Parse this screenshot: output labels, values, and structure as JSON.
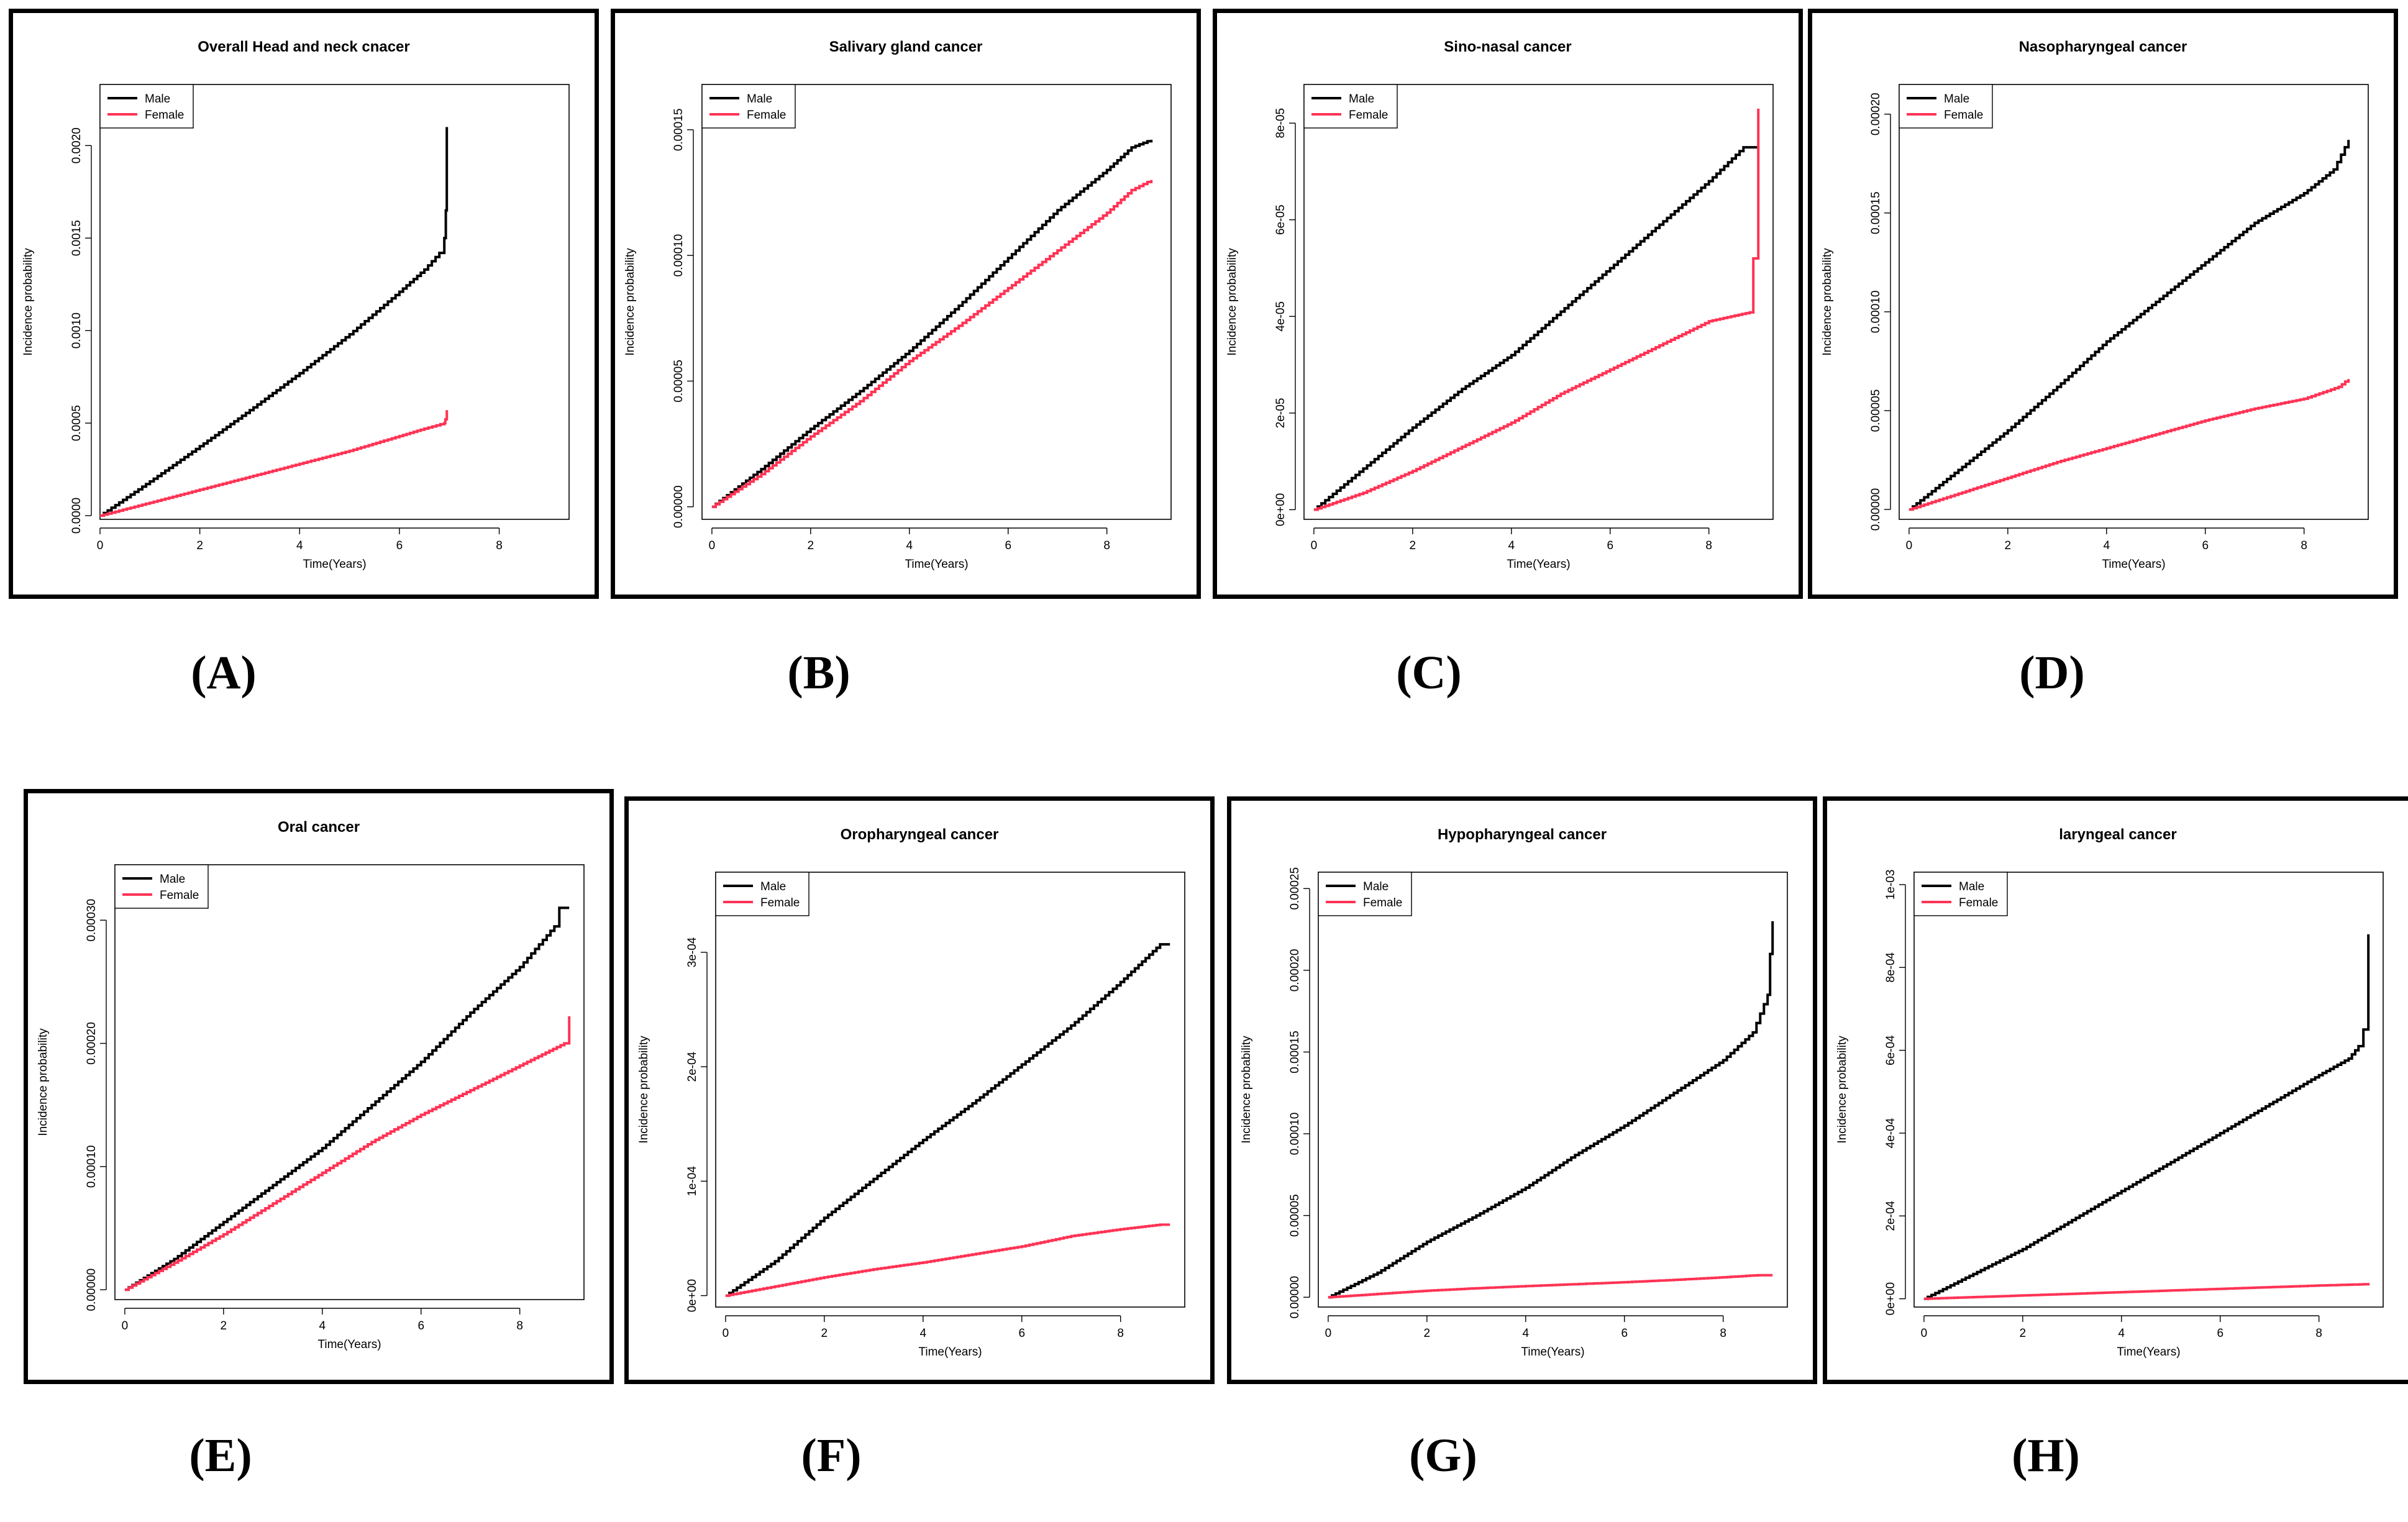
{
  "colors": {
    "male": "#000000",
    "female": "#ff3355"
  },
  "chart_data": [
    {
      "id": "A",
      "type": "line",
      "title": "Overall Head and neck cnacer",
      "xlabel": "Time(Years)",
      "ylabel": "Incidence probability",
      "xlim": [
        0,
        9.4
      ],
      "ylim": [
        -2e-05,
        0.00233
      ],
      "xticks": [
        0,
        2,
        4,
        6,
        8
      ],
      "xtick_labels": [
        "0",
        "2",
        "4",
        "6",
        "8"
      ],
      "yticks": [
        0,
        0.0005,
        0.001,
        0.0015,
        0.002
      ],
      "ytick_labels": [
        "0.0000",
        "0.0005",
        "0.0010",
        "0.0015",
        "0.0020"
      ],
      "legend": [
        "Male",
        "Female"
      ],
      "series": [
        {
          "name": "Male",
          "x": [
            0,
            1,
            2,
            3,
            4,
            5,
            6,
            6.5,
            6.8,
            6.9,
            6.93,
            6.95,
            6.95
          ],
          "y": [
            0,
            0.000185,
            0.000375,
            0.00057,
            0.00077,
            0.00098,
            0.00121,
            0.00133,
            0.00142,
            0.0015,
            0.00165,
            0.00172,
            0.0021
          ]
        },
        {
          "name": "Female",
          "x": [
            0,
            1,
            2,
            3,
            4,
            5,
            6,
            6.5,
            6.9,
            6.92,
            6.95
          ],
          "y": [
            0,
            7e-05,
            0.00014,
            0.00021,
            0.00028,
            0.00035,
            0.00043,
            0.00047,
            0.0005,
            0.00052,
            0.00057
          ]
        }
      ]
    },
    {
      "id": "B",
      "type": "line",
      "title": "Salivary gland cancer",
      "xlabel": "Time(Years)",
      "ylabel": "Incidence probability",
      "xlim": [
        -0.2,
        9.3
      ],
      "ylim": [
        -5e-06,
        0.000168
      ],
      "xticks": [
        0,
        2,
        4,
        6,
        8
      ],
      "xtick_labels": [
        "0",
        "2",
        "4",
        "6",
        "8"
      ],
      "yticks": [
        0,
        5e-05,
        0.0001,
        0.00015
      ],
      "ytick_labels": [
        "0.00000",
        "0.00005",
        "0.00010",
        "0.00015"
      ],
      "legend": [
        "Male",
        "Female"
      ],
      "series": [
        {
          "name": "Male",
          "x": [
            0,
            1,
            2,
            3,
            4,
            5,
            6,
            7,
            8,
            8.5,
            8.9
          ],
          "y": [
            0,
            1.5e-05,
            3.1e-05,
            4.6e-05,
            6.2e-05,
            8e-05,
            9.9e-05,
            0.000118,
            0.000134,
            0.000143,
            0.000146
          ]
        },
        {
          "name": "Female",
          "x": [
            0,
            1,
            2,
            3,
            4,
            5,
            6,
            7,
            8,
            8.5,
            8.9
          ],
          "y": [
            0,
            1.3e-05,
            2.8e-05,
            4.2e-05,
            5.8e-05,
            7.2e-05,
            8.7e-05,
            0.000102,
            0.000117,
            0.000126,
            0.00013
          ]
        }
      ]
    },
    {
      "id": "C",
      "type": "line",
      "title": "Sino-nasal cancer",
      "xlabel": "Time(Years)",
      "ylabel": "Incidence probability",
      "xlim": [
        -0.2,
        9.3
      ],
      "ylim": [
        -2e-06,
        8.8e-05
      ],
      "xticks": [
        0,
        2,
        4,
        6,
        8
      ],
      "xtick_labels": [
        "0",
        "2",
        "4",
        "6",
        "8"
      ],
      "yticks": [
        0,
        2e-05,
        4e-05,
        6e-05,
        8e-05
      ],
      "ytick_labels": [
        "0e+00",
        "2e-05",
        "4e-05",
        "6e-05",
        "8e-05"
      ],
      "legend": [
        "Male",
        "Female"
      ],
      "series": [
        {
          "name": "Male",
          "x": [
            0,
            1,
            2,
            3,
            4,
            5,
            6,
            7,
            8,
            8.7,
            9
          ],
          "y": [
            0,
            8.5e-06,
            1.7e-05,
            2.5e-05,
            3.2e-05,
            4.1e-05,
            5e-05,
            5.9e-05,
            6.8e-05,
            7.5e-05,
            7.5e-05
          ]
        },
        {
          "name": "Female",
          "x": [
            0,
            1,
            2,
            3,
            4,
            5,
            6,
            7,
            8,
            8.9,
            8.9,
            9.0,
            9.0
          ],
          "y": [
            0,
            3.5e-06,
            8e-06,
            1.3e-05,
            1.8e-05,
            2.4e-05,
            2.9e-05,
            3.4e-05,
            3.9e-05,
            4.1e-05,
            5.2e-05,
            7e-05,
            8.3e-05
          ]
        }
      ]
    },
    {
      "id": "D",
      "type": "line",
      "title": "Nasopharyngeal cancer",
      "xlabel": "Time(Years)",
      "ylabel": "Incidence probability",
      "xlim": [
        -0.2,
        9.3
      ],
      "ylim": [
        -5e-06,
        0.000215
      ],
      "xticks": [
        0,
        2,
        4,
        6,
        8
      ],
      "xtick_labels": [
        "0",
        "2",
        "4",
        "6",
        "8"
      ],
      "yticks": [
        0,
        5e-05,
        0.0001,
        0.00015,
        0.0002
      ],
      "ytick_labels": [
        "0.00000",
        "0.00005",
        "0.00010",
        "0.00015",
        "0.00020"
      ],
      "legend": [
        "Male",
        "Female"
      ],
      "series": [
        {
          "name": "Male",
          "x": [
            0,
            1,
            2,
            3,
            4,
            5,
            6,
            7,
            8,
            8.6,
            8.9
          ],
          "y": [
            0,
            2e-05,
            4e-05,
            6.2e-05,
            8.5e-05,
            0.000105,
            0.000125,
            0.000145,
            0.00016,
            0.000172,
            0.000187
          ]
        },
        {
          "name": "Female",
          "x": [
            0,
            1,
            2,
            3,
            4,
            5,
            6,
            7,
            8,
            8.7,
            8.9
          ],
          "y": [
            0,
            8e-06,
            1.6e-05,
            2.4e-05,
            3.1e-05,
            3.8e-05,
            4.5e-05,
            5.1e-05,
            5.6e-05,
            6.2e-05,
            6.6e-05
          ]
        }
      ]
    },
    {
      "id": "E",
      "type": "line",
      "title": "Oral cancer",
      "xlabel": "Time(Years)",
      "ylabel": "Incidence probability",
      "xlim": [
        -0.2,
        9.3
      ],
      "ylim": [
        -8e-06,
        0.000345
      ],
      "xticks": [
        0,
        2,
        4,
        6,
        8
      ],
      "xtick_labels": [
        "0",
        "2",
        "4",
        "6",
        "8"
      ],
      "yticks": [
        0,
        0.0001,
        0.0002,
        0.0003
      ],
      "ytick_labels": [
        "0.00000",
        "0.00010",
        "0.00020",
        "0.00030"
      ],
      "legend": [
        "Male",
        "Female"
      ],
      "series": [
        {
          "name": "Male",
          "x": [
            0,
            1,
            2,
            3,
            4,
            5,
            6,
            7,
            8,
            8.7,
            8.8,
            9
          ],
          "y": [
            0,
            2.5e-05,
            5.5e-05,
            8.5e-05,
            0.000115,
            0.00015,
            0.000185,
            0.000225,
            0.000262,
            0.000295,
            0.00031,
            0.00031
          ]
        },
        {
          "name": "Female",
          "x": [
            0,
            1,
            2,
            3,
            4,
            5,
            6,
            7,
            8,
            8.9,
            9,
            9
          ],
          "y": [
            0,
            2.2e-05,
            4.5e-05,
            7e-05,
            9.5e-05,
            0.00012,
            0.000142,
            0.000162,
            0.000182,
            0.0002,
            0.000205,
            0.000222
          ]
        }
      ]
    },
    {
      "id": "F",
      "type": "line",
      "title": "Oropharyngeal cancer",
      "xlabel": "Time(Years)",
      "ylabel": "Incidence probability",
      "xlim": [
        -0.2,
        9.3
      ],
      "ylim": [
        -1e-05,
        0.00037
      ],
      "xticks": [
        0,
        2,
        4,
        6,
        8
      ],
      "xtick_labels": [
        "0",
        "2",
        "4",
        "6",
        "8"
      ],
      "yticks": [
        0,
        0.0001,
        0.0002,
        0.0003
      ],
      "ytick_labels": [
        "0e+00",
        "1e-04",
        "2e-04",
        "3e-04"
      ],
      "legend": [
        "Male",
        "Female"
      ],
      "series": [
        {
          "name": "Male",
          "x": [
            0,
            1,
            2,
            3,
            4,
            5,
            6,
            7,
            8,
            8.8,
            9
          ],
          "y": [
            0,
            3e-05,
            6.8e-05,
            0.000102,
            0.000136,
            0.000168,
            0.000202,
            0.000236,
            0.000274,
            0.000307,
            0.000307
          ]
        },
        {
          "name": "Female",
          "x": [
            0,
            1,
            2,
            3,
            4,
            5,
            6,
            7,
            8,
            8.8,
            9
          ],
          "y": [
            0,
            8e-06,
            1.6e-05,
            2.3e-05,
            2.9e-05,
            3.6e-05,
            4.3e-05,
            5.2e-05,
            5.8e-05,
            6.2e-05,
            6.2e-05
          ]
        }
      ]
    },
    {
      "id": "G",
      "type": "line",
      "title": "Hypopharyngeal cancer",
      "xlabel": "Time(Years)",
      "ylabel": "Incidence probability",
      "xlim": [
        -0.2,
        9.3
      ],
      "ylim": [
        -6e-06,
        0.00026
      ],
      "xticks": [
        0,
        2,
        4,
        6,
        8
      ],
      "xtick_labels": [
        "0",
        "2",
        "4",
        "6",
        "8"
      ],
      "yticks": [
        0,
        5e-05,
        0.0001,
        0.00015,
        0.0002,
        0.00025
      ],
      "ytick_labels": [
        "0.00000",
        "0.00005",
        "0.00010",
        "0.00015",
        "0.00020",
        "0.00025"
      ],
      "legend": [
        "Male",
        "Female"
      ],
      "series": [
        {
          "name": "Male",
          "x": [
            0,
            1,
            2,
            3,
            4,
            5,
            6,
            7,
            8,
            8.6,
            8.9,
            8.95,
            9
          ],
          "y": [
            0,
            1.5e-05,
            3.4e-05,
            5e-05,
            6.7e-05,
            8.7e-05,
            0.000105,
            0.000125,
            0.000145,
            0.000162,
            0.000185,
            0.00021,
            0.00023
          ]
        },
        {
          "name": "Female",
          "x": [
            0,
            1,
            2,
            3,
            4,
            5,
            6,
            7,
            8,
            8.7,
            9
          ],
          "y": [
            0,
            2e-06,
            4e-06,
            5.5e-06,
            6.8e-06,
            8e-06,
            9.2e-06,
            1.06e-05,
            1.22e-05,
            1.35e-05,
            1.35e-05
          ]
        }
      ]
    },
    {
      "id": "H",
      "type": "line",
      "title": "laryngeal cancer",
      "xlabel": "Time(Years)",
      "ylabel": "Incidence probability",
      "xlim": [
        -0.2,
        9.3
      ],
      "ylim": [
        -2e-05,
        0.00103
      ],
      "xticks": [
        0,
        2,
        4,
        6,
        8
      ],
      "xtick_labels": [
        "0",
        "2",
        "4",
        "6",
        "8"
      ],
      "yticks": [
        0,
        0.0002,
        0.0004,
        0.0006,
        0.0008,
        0.001
      ],
      "ytick_labels": [
        "0e+00",
        "2e-04",
        "4e-04",
        "6e-04",
        "8e-04",
        "1e-03"
      ],
      "legend": [
        "Male",
        "Female"
      ],
      "series": [
        {
          "name": "Male",
          "x": [
            0,
            1,
            2,
            3,
            4,
            5,
            6,
            7,
            8,
            8.6,
            8.8,
            8.9,
            9,
            9
          ],
          "y": [
            0,
            6e-05,
            0.00012,
            0.00019,
            0.00026,
            0.00033,
            0.0004,
            0.00047,
            0.00054,
            0.00058,
            0.00061,
            0.00065,
            0.00065,
            0.00088
          ]
        },
        {
          "name": "Female",
          "x": [
            0,
            1,
            2,
            3,
            4,
            5,
            6,
            7,
            8,
            8.9,
            9
          ],
          "y": [
            0,
            4e-06,
            8e-06,
            1.2e-05,
            1.6e-05,
            2e-05,
            2.4e-05,
            2.8e-05,
            3.2e-05,
            3.5e-05,
            3.8e-05
          ]
        }
      ]
    }
  ],
  "captions": [
    "(A)",
    "(B)",
    "(C)",
    "(D)",
    "(E)",
    "(F)",
    "(G)",
    "(H)"
  ]
}
